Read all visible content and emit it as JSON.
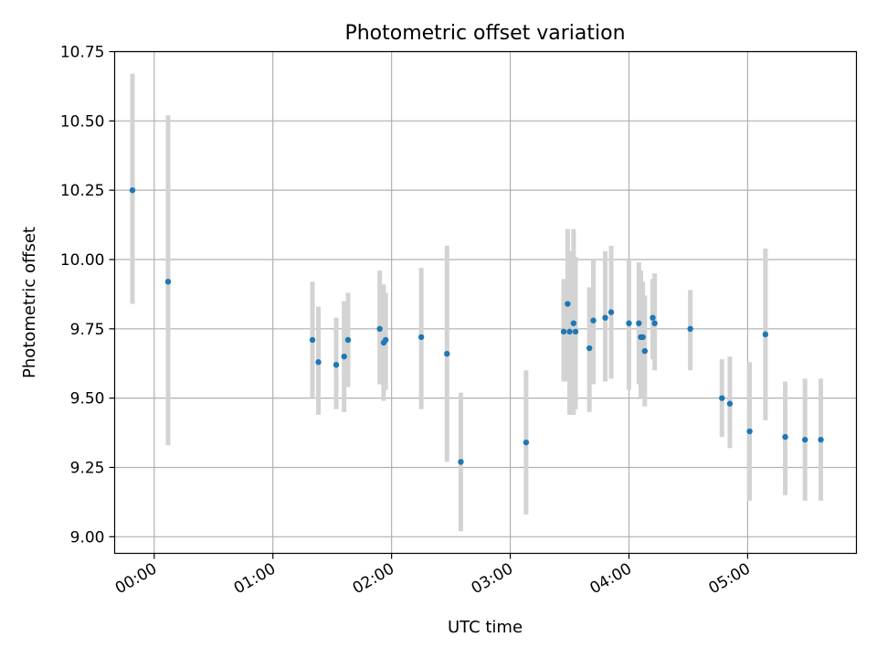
{
  "chart_data": {
    "type": "scatter",
    "title": "Photometric offset variation",
    "xlabel": "UTC time",
    "ylabel": "Photometric offset",
    "x_unit": "UTC time (HH:MM)",
    "xlim": [
      "-00:20",
      "05:55"
    ],
    "ylim": [
      8.94,
      10.75
    ],
    "x_ticks": [
      "00:00",
      "01:00",
      "02:00",
      "03:00",
      "04:00",
      "05:00"
    ],
    "y_ticks": [
      "9.00",
      "9.25",
      "9.50",
      "9.75",
      "10.00",
      "10.25",
      "10.50",
      "10.75"
    ],
    "grid": true,
    "legend": "none",
    "colors": {
      "points": "#1f77b4",
      "error_bars": "#d3d3d3",
      "grid": "#b0b0b0",
      "frame": "#000000"
    },
    "points": [
      {
        "x": "-00:11",
        "y": 10.25,
        "ylow": 9.84,
        "yhigh": 10.67
      },
      {
        "x": "00:07",
        "y": 9.92,
        "ylow": 9.33,
        "yhigh": 10.52
      },
      {
        "x": "01:20",
        "y": 9.71,
        "ylow": 9.5,
        "yhigh": 9.92
      },
      {
        "x": "01:23",
        "y": 9.63,
        "ylow": 9.44,
        "yhigh": 9.83
      },
      {
        "x": "01:32",
        "y": 9.62,
        "ylow": 9.46,
        "yhigh": 9.79
      },
      {
        "x": "01:36",
        "y": 9.65,
        "ylow": 9.45,
        "yhigh": 9.85
      },
      {
        "x": "01:38",
        "y": 9.71,
        "ylow": 9.54,
        "yhigh": 9.88
      },
      {
        "x": "01:54",
        "y": 9.75,
        "ylow": 9.55,
        "yhigh": 9.96
      },
      {
        "x": "01:56",
        "y": 9.7,
        "ylow": 9.49,
        "yhigh": 9.91
      },
      {
        "x": "01:57",
        "y": 9.71,
        "ylow": 9.53,
        "yhigh": 9.88
      },
      {
        "x": "02:15",
        "y": 9.72,
        "ylow": 9.46,
        "yhigh": 9.97
      },
      {
        "x": "02:28",
        "y": 9.66,
        "ylow": 9.27,
        "yhigh": 10.05
      },
      {
        "x": "02:35",
        "y": 9.27,
        "ylow": 9.02,
        "yhigh": 9.52
      },
      {
        "x": "03:08",
        "y": 9.34,
        "ylow": 9.08,
        "yhigh": 9.6
      },
      {
        "x": "03:27",
        "y": 9.74,
        "ylow": 9.56,
        "yhigh": 9.93
      },
      {
        "x": "03:29",
        "y": 9.84,
        "ylow": 9.56,
        "yhigh": 10.11
      },
      {
        "x": "03:30",
        "y": 9.74,
        "ylow": 9.44,
        "yhigh": 10.03
      },
      {
        "x": "03:32",
        "y": 9.77,
        "ylow": 9.44,
        "yhigh": 10.11
      },
      {
        "x": "03:33",
        "y": 9.74,
        "ylow": 9.46,
        "yhigh": 10.01
      },
      {
        "x": "03:40",
        "y": 9.68,
        "ylow": 9.45,
        "yhigh": 9.9
      },
      {
        "x": "03:42",
        "y": 9.78,
        "ylow": 9.55,
        "yhigh": 10.0
      },
      {
        "x": "03:48",
        "y": 9.79,
        "ylow": 9.56,
        "yhigh": 10.03
      },
      {
        "x": "03:51",
        "y": 9.81,
        "ylow": 9.57,
        "yhigh": 10.05
      },
      {
        "x": "04:00",
        "y": 9.77,
        "ylow": 9.53,
        "yhigh": 10.0
      },
      {
        "x": "04:05",
        "y": 9.77,
        "ylow": 9.55,
        "yhigh": 9.99
      },
      {
        "x": "04:06",
        "y": 9.72,
        "ylow": 9.5,
        "yhigh": 9.96
      },
      {
        "x": "04:07",
        "y": 9.72,
        "ylow": 9.53,
        "yhigh": 9.92
      },
      {
        "x": "04:08",
        "y": 9.67,
        "ylow": 9.47,
        "yhigh": 9.87
      },
      {
        "x": "04:12",
        "y": 9.79,
        "ylow": 9.64,
        "yhigh": 9.93
      },
      {
        "x": "04:13",
        "y": 9.77,
        "ylow": 9.6,
        "yhigh": 9.95
      },
      {
        "x": "04:31",
        "y": 9.75,
        "ylow": 9.6,
        "yhigh": 9.89
      },
      {
        "x": "04:47",
        "y": 9.5,
        "ylow": 9.36,
        "yhigh": 9.64
      },
      {
        "x": "04:51",
        "y": 9.48,
        "ylow": 9.32,
        "yhigh": 9.65
      },
      {
        "x": "05:01",
        "y": 9.38,
        "ylow": 9.13,
        "yhigh": 9.63
      },
      {
        "x": "05:09",
        "y": 9.73,
        "ylow": 9.42,
        "yhigh": 10.04
      },
      {
        "x": "05:19",
        "y": 9.36,
        "ylow": 9.15,
        "yhigh": 9.56
      },
      {
        "x": "05:29",
        "y": 9.35,
        "ylow": 9.13,
        "yhigh": 9.57
      },
      {
        "x": "05:37",
        "y": 9.35,
        "ylow": 9.13,
        "yhigh": 9.57
      }
    ]
  }
}
